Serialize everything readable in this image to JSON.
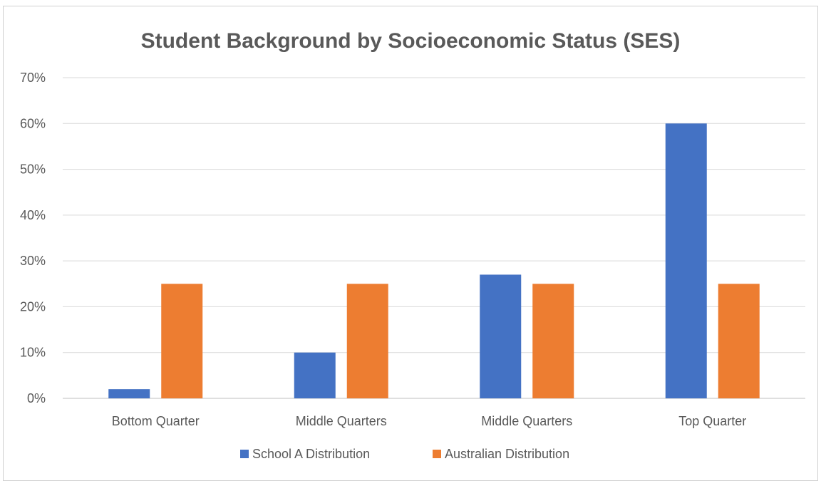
{
  "chart_data": {
    "type": "bar",
    "title": "Student Background by Socioeconomic Status (SES)",
    "xlabel": "",
    "ylabel": "",
    "categories": [
      "Bottom Quarter",
      "Middle Quarters",
      "Middle Quarters",
      "Top Quarter"
    ],
    "series": [
      {
        "name": "School A Distribution",
        "values": [
          2,
          10,
          27,
          60
        ],
        "color": "#4472c4"
      },
      {
        "name": "Australian Distribution",
        "values": [
          25,
          25,
          25,
          25
        ],
        "color": "#ed7d31"
      }
    ],
    "ylim": [
      0,
      70
    ],
    "yticks": [
      "0%",
      "10%",
      "20%",
      "30%",
      "40%",
      "50%",
      "60%",
      "70%"
    ],
    "grid": true,
    "legend": "bottom"
  }
}
